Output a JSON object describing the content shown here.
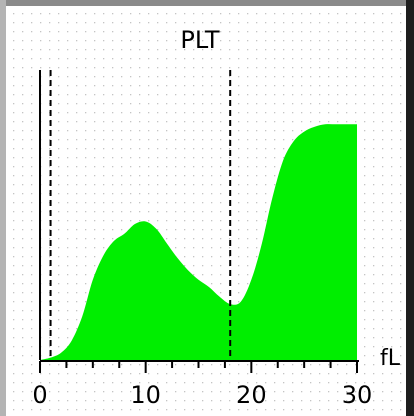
{
  "chart_data": {
    "type": "area",
    "title": "PLT",
    "xlabel": "fL",
    "ylabel": "",
    "xlim": [
      0,
      30
    ],
    "ylim": [
      0,
      100
    ],
    "x_ticks": [
      "0",
      "10",
      "20",
      "30"
    ],
    "grid": true,
    "legend": "none",
    "series": [
      {
        "x": [
          0,
          1,
          2,
          3,
          4,
          5,
          6,
          7,
          8,
          9,
          10,
          11,
          12,
          13,
          14,
          15,
          16,
          17,
          18,
          19,
          20,
          21,
          22,
          23,
          24,
          25,
          26,
          27,
          28,
          29,
          30
        ],
        "values": [
          0,
          1,
          3,
          8,
          18,
          33,
          43,
          49,
          52,
          56,
          57,
          54,
          48,
          42,
          37,
          33,
          30,
          26,
          23,
          24,
          33,
          48,
          67,
          82,
          90,
          94,
          96,
          97,
          97,
          97,
          97
        ],
        "color": "#00ee00"
      }
    ],
    "markers": [
      1,
      18
    ]
  },
  "colors": {
    "fill": "#00ee00",
    "axis": "#000000",
    "grid_dots": "#b8b8b8",
    "frame": "#b0b0b0"
  }
}
